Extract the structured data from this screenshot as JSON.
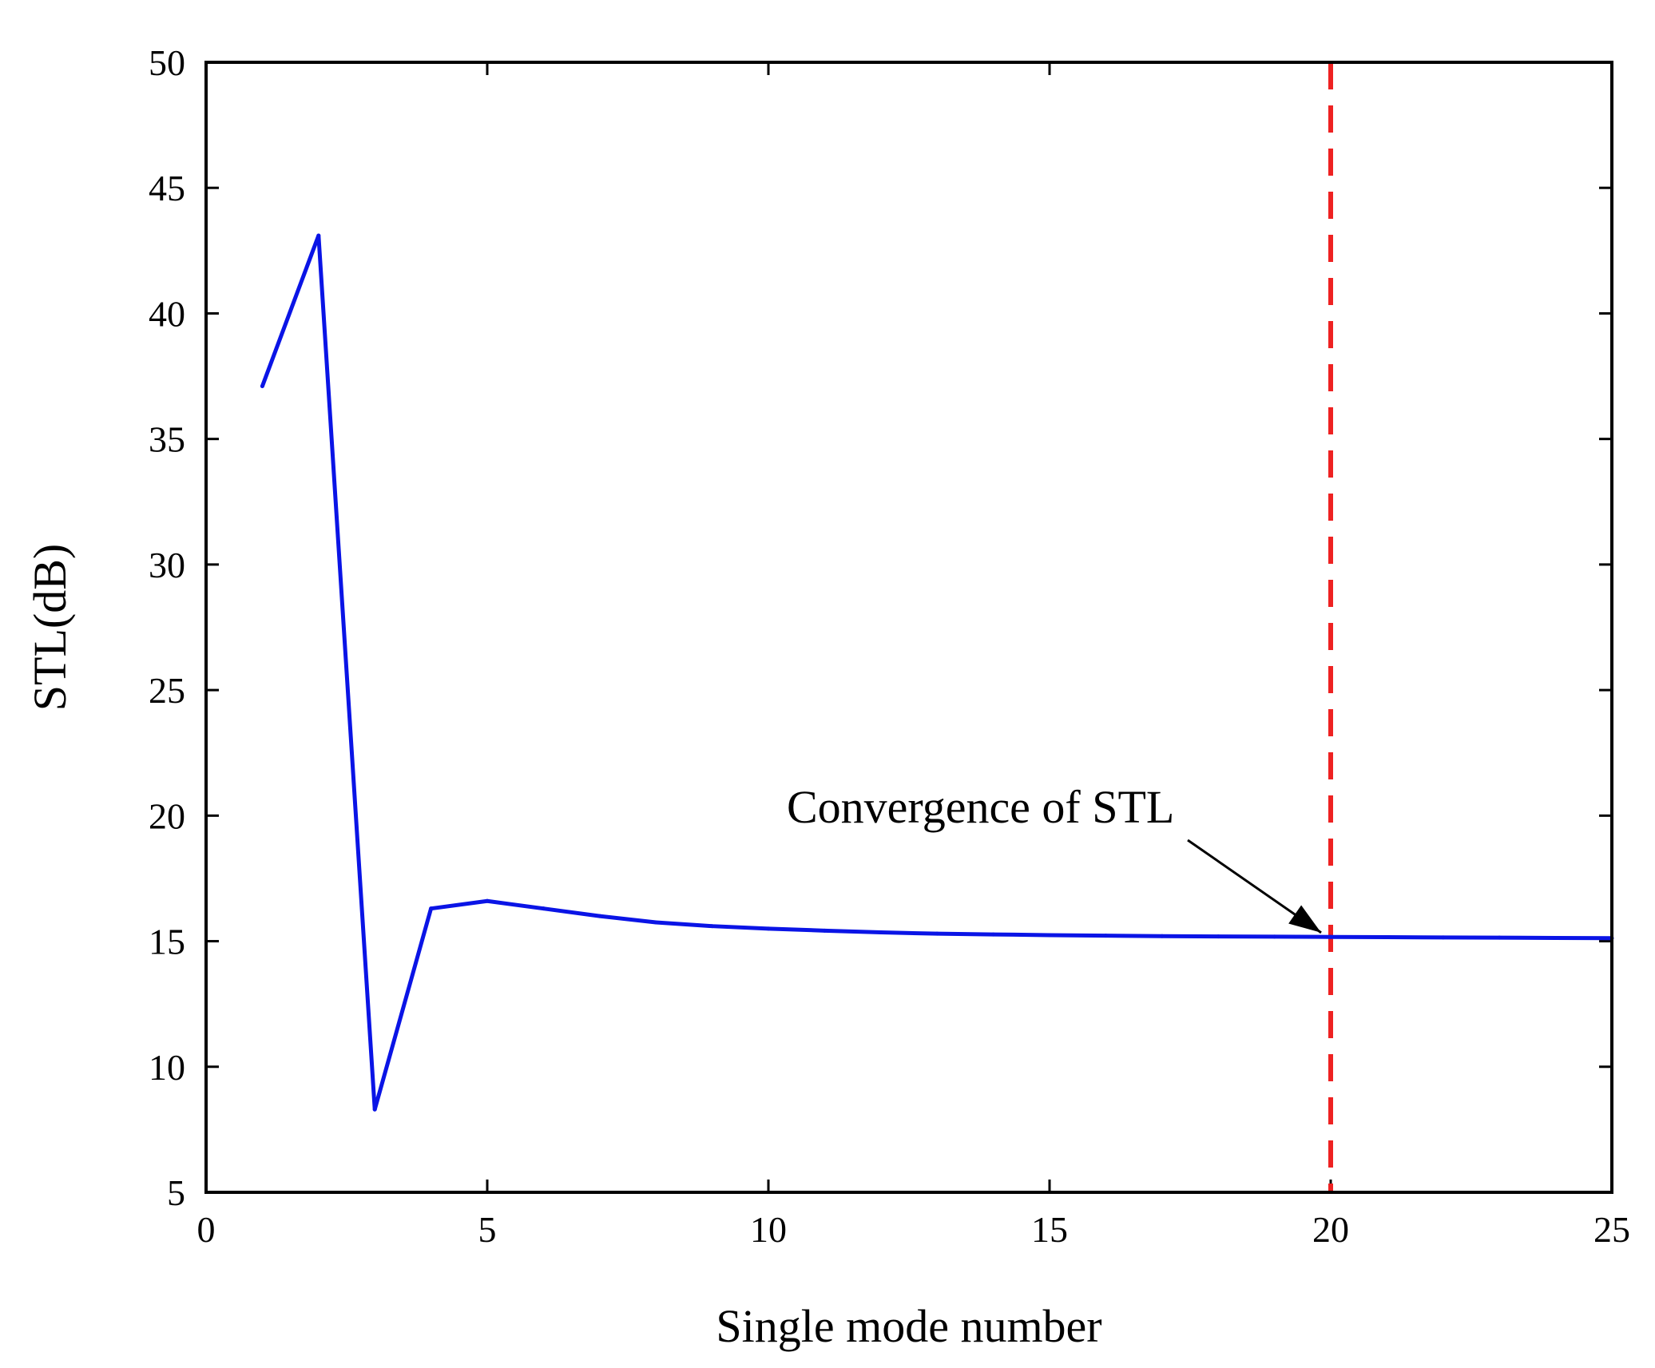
{
  "chart_data": {
    "type": "line",
    "title": "",
    "xlabel": "Single mode number",
    "ylabel": "STL(dB)",
    "xlim": [
      0,
      25
    ],
    "ylim": [
      5,
      50
    ],
    "xticks": [
      0,
      5,
      10,
      15,
      20,
      25
    ],
    "yticks": [
      5,
      10,
      15,
      20,
      25,
      30,
      35,
      40,
      45,
      50
    ],
    "grid": false,
    "series": [
      {
        "name": "STL",
        "color": "#0a14e6",
        "x": [
          1,
          2,
          3,
          4,
          5,
          6,
          7,
          8,
          9,
          10,
          11,
          12,
          13,
          14,
          15,
          16,
          17,
          18,
          19,
          20,
          21,
          22,
          23,
          24,
          25
        ],
        "y": [
          37.1,
          43.1,
          8.3,
          16.3,
          16.6,
          16.3,
          16.0,
          15.75,
          15.6,
          15.5,
          15.42,
          15.35,
          15.3,
          15.27,
          15.24,
          15.22,
          15.2,
          15.19,
          15.18,
          15.17,
          15.16,
          15.15,
          15.14,
          15.13,
          15.12
        ]
      }
    ],
    "reference_line": {
      "x": 20,
      "color": "#ee2222",
      "style": "dashed"
    },
    "annotation": {
      "text": "Convergence of STL",
      "target_x": 20,
      "target_y": 15.15
    }
  }
}
